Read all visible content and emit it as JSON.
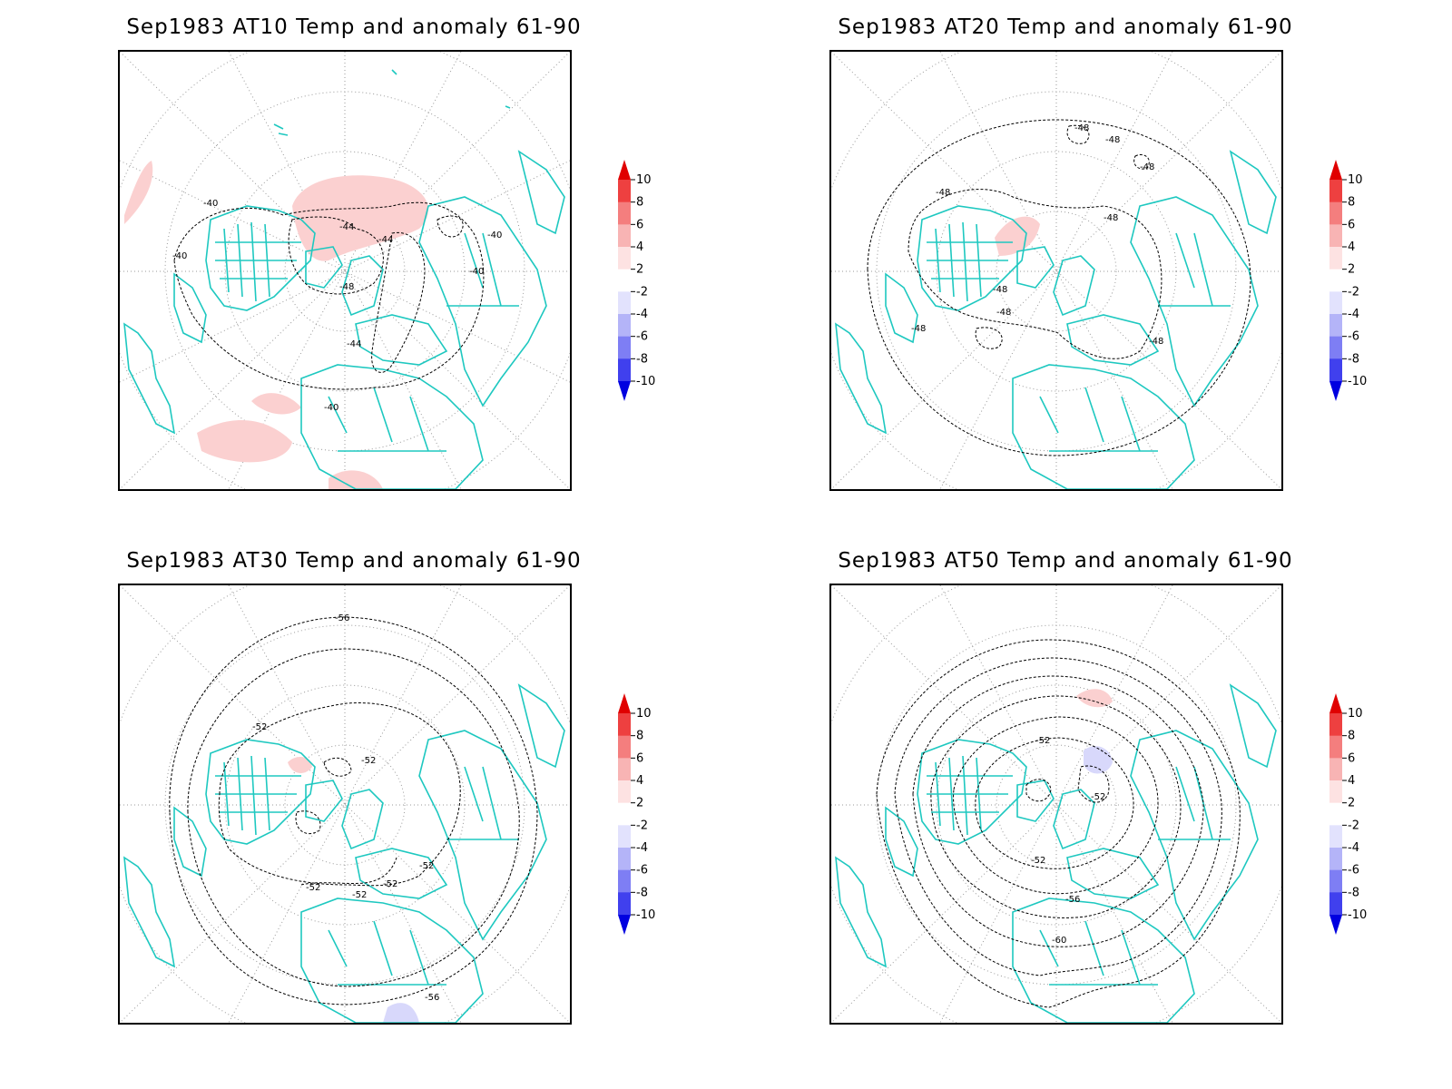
{
  "panels": [
    {
      "title": "Sep1983 AT10 Temp and anomaly 61-90",
      "contour_labels": [
        "-40",
        "-44",
        "-44",
        "-48",
        "-44",
        "-40",
        "-40",
        "-40",
        "-40"
      ]
    },
    {
      "title": "Sep1983 AT20 Temp and anomaly 61-90",
      "contour_labels": [
        "-48",
        "-48",
        "-48",
        "-48",
        "-48",
        "-48",
        "-48",
        "-48",
        "-48"
      ]
    },
    {
      "title": "Sep1983 AT30 Temp and anomaly 61-90",
      "contour_labels": [
        "-56",
        "-52",
        "-52",
        "-52",
        "-52",
        "-52",
        "-52",
        "-56"
      ]
    },
    {
      "title": "Sep1983 AT50 Temp and anomaly 61-90",
      "contour_labels": [
        "-52",
        "-52",
        "-52",
        "-56",
        "-60"
      ]
    }
  ],
  "colorbar": {
    "labels": [
      "10",
      "8",
      "6",
      "4",
      "2",
      "-2",
      "-4",
      "-6",
      "-8",
      "-10"
    ],
    "colors": [
      "#e00000",
      "#ee4040",
      "#f47e7e",
      "#f8b4b4",
      "#fde2e2",
      "#ffffff",
      "#e2e2fd",
      "#b4b4f8",
      "#7e7ef4",
      "#4040ee",
      "#0000e0"
    ]
  },
  "colors": {
    "coastline": "#1ec8c0",
    "anomaly_positive": "#fbd0d0",
    "anomaly_negative": "#d8d8fb",
    "contour": "#000000"
  }
}
